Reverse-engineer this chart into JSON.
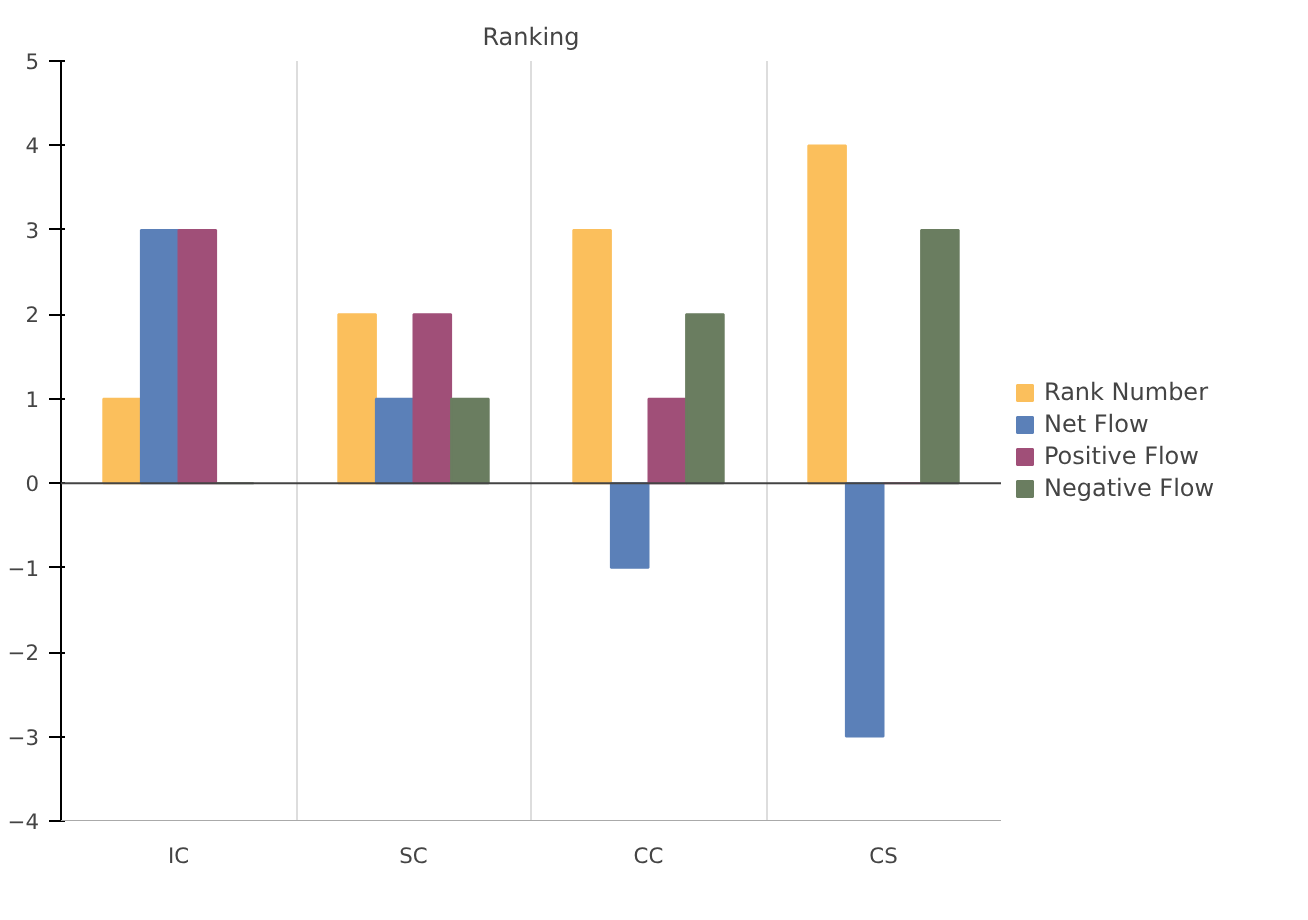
{
  "chart_data": {
    "type": "bar",
    "title": "Ranking",
    "categories": [
      "IC",
      "SC",
      "CC",
      "CS"
    ],
    "series": [
      {
        "name": "Rank Number",
        "color": "#fbbf5c",
        "values": [
          1,
          2,
          3,
          4
        ]
      },
      {
        "name": "Net Flow",
        "color": "#5b80b8",
        "values": [
          3,
          1,
          -1,
          -3
        ]
      },
      {
        "name": "Positive Flow",
        "color": "#a04f78",
        "values": [
          3,
          2,
          1,
          0
        ]
      },
      {
        "name": "Negative Flow",
        "color": "#6a7d60",
        "values": [
          0,
          1,
          2,
          3
        ]
      }
    ],
    "ylim": [
      -4,
      5
    ],
    "yticks": [
      -4,
      -3,
      -2,
      -1,
      0,
      1,
      2,
      3,
      4,
      5
    ],
    "grid": "x",
    "legend": "right"
  }
}
